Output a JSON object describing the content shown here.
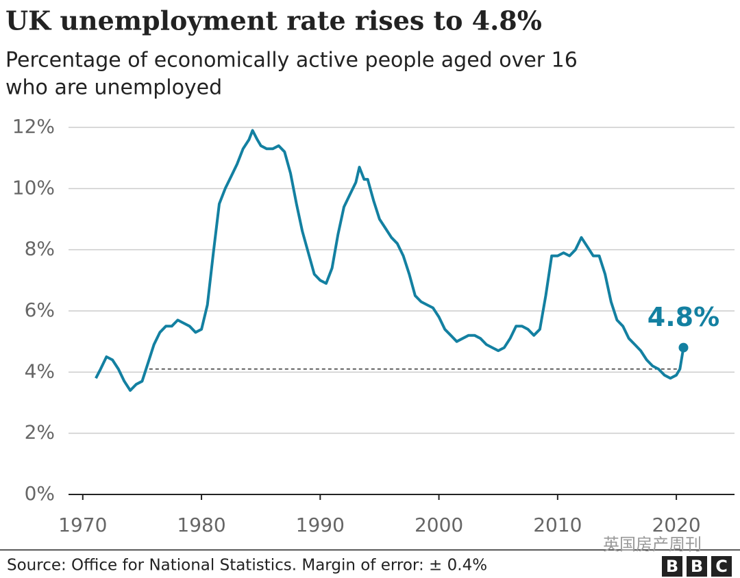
{
  "chart_data": {
    "type": "line",
    "title": "UK unemployment rate rises to 4.8%",
    "subtitle": [
      "Percentage of economically active people aged over 16",
      "who are unemployed"
    ],
    "x": [
      1971.1,
      1971.5,
      1972.0,
      1972.5,
      1973.0,
      1973.5,
      1974.0,
      1974.5,
      1975.0,
      1975.5,
      1976.0,
      1976.5,
      1977.0,
      1977.5,
      1978.0,
      1978.5,
      1979.0,
      1979.5,
      1980.0,
      1980.5,
      1981.0,
      1981.5,
      1982.0,
      1982.5,
      1983.0,
      1983.5,
      1984.0,
      1984.3,
      1984.7,
      1985.0,
      1985.5,
      1986.0,
      1986.5,
      1987.0,
      1987.5,
      1988.0,
      1988.5,
      1989.0,
      1989.5,
      1990.0,
      1990.5,
      1991.0,
      1991.5,
      1992.0,
      1992.5,
      1993.0,
      1993.3,
      1993.7,
      1994.0,
      1994.5,
      1995.0,
      1995.5,
      1996.0,
      1996.5,
      1997.0,
      1997.5,
      1998.0,
      1998.5,
      1999.0,
      1999.5,
      2000.0,
      2000.5,
      2001.0,
      2001.5,
      2002.0,
      2002.5,
      2003.0,
      2003.5,
      2004.0,
      2004.5,
      2005.0,
      2005.5,
      2006.0,
      2006.5,
      2007.0,
      2007.5,
      2008.0,
      2008.5,
      2009.0,
      2009.5,
      2010.0,
      2010.5,
      2011.0,
      2011.5,
      2012.0,
      2012.5,
      2013.0,
      2013.5,
      2014.0,
      2014.5,
      2015.0,
      2015.5,
      2016.0,
      2016.5,
      2017.0,
      2017.5,
      2018.0,
      2018.5,
      2019.0,
      2019.5,
      2020.0,
      2020.3,
      2020.6
    ],
    "values": [
      3.8,
      4.1,
      4.5,
      4.4,
      4.1,
      3.7,
      3.4,
      3.6,
      3.7,
      4.3,
      4.9,
      5.3,
      5.5,
      5.5,
      5.7,
      5.6,
      5.5,
      5.3,
      5.4,
      6.2,
      7.9,
      9.5,
      10.0,
      10.4,
      10.8,
      11.3,
      11.6,
      11.9,
      11.6,
      11.4,
      11.3,
      11.3,
      11.4,
      11.2,
      10.5,
      9.5,
      8.6,
      7.9,
      7.2,
      7.0,
      6.9,
      7.4,
      8.5,
      9.4,
      9.8,
      10.2,
      10.7,
      10.3,
      10.3,
      9.6,
      9.0,
      8.7,
      8.4,
      8.2,
      7.8,
      7.2,
      6.5,
      6.3,
      6.2,
      6.1,
      5.8,
      5.4,
      5.2,
      5.0,
      5.1,
      5.2,
      5.2,
      5.1,
      4.9,
      4.8,
      4.7,
      4.8,
      5.1,
      5.5,
      5.5,
      5.4,
      5.2,
      5.4,
      6.5,
      7.8,
      7.8,
      7.9,
      7.8,
      8.0,
      8.4,
      8.1,
      7.8,
      7.8,
      7.2,
      6.3,
      5.7,
      5.5,
      5.1,
      4.9,
      4.7,
      4.4,
      4.2,
      4.1,
      3.9,
      3.8,
      3.9,
      4.1,
      4.8
    ],
    "color": "#1380a1",
    "annotation": "4.8%",
    "reference_line": {
      "value": 4.1,
      "x_start": 1975.6,
      "x_end": 2020.3
    },
    "xlim": [
      1968.8,
      2024.9
    ],
    "xticks": [
      1970,
      1980,
      1990,
      2000,
      2010,
      2020
    ],
    "ylim": [
      0,
      12
    ],
    "yticks": [
      {
        "value": 0,
        "label": "0%"
      },
      {
        "value": 2,
        "label": "2%"
      },
      {
        "value": 4,
        "label": "4%"
      },
      {
        "value": 6,
        "label": "6%"
      },
      {
        "value": 8,
        "label": "8%"
      },
      {
        "value": 10,
        "label": "10%"
      },
      {
        "value": 12,
        "label": "12%"
      }
    ],
    "grid": true,
    "source": "Source: Office for National Statistics. Margin of error: ± 0.4%",
    "watermark": "英国房产周刊",
    "logo": [
      "B",
      "B",
      "C"
    ]
  }
}
